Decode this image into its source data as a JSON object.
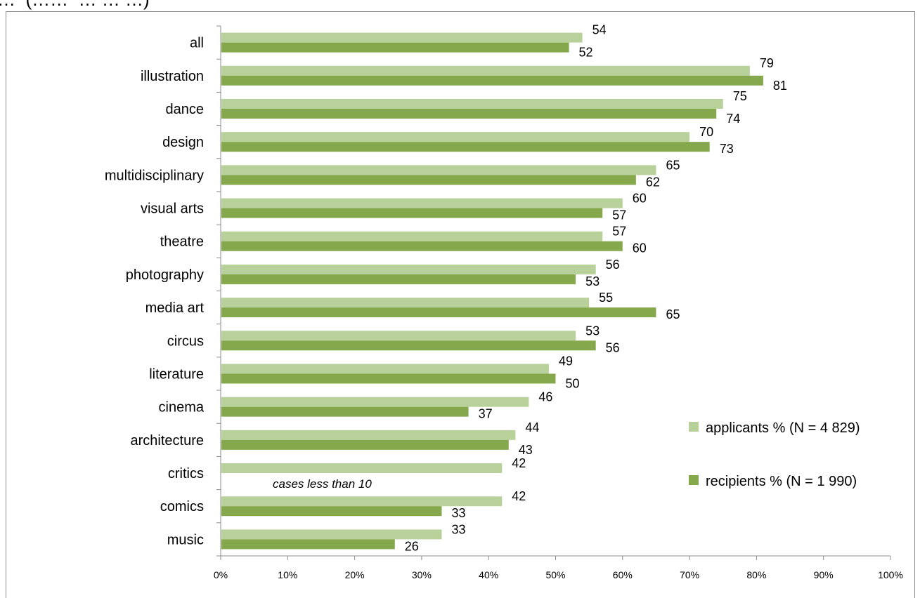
{
  "header": {
    "cropped_text": "…  (……  … … …)"
  },
  "chart_data": {
    "type": "bar",
    "orientation": "horizontal",
    "categories": [
      "all",
      "illustration",
      "dance",
      "design",
      "multidisciplinary",
      "visual arts",
      "theatre",
      "photography",
      "media art",
      "circus",
      "literature",
      "cinema",
      "architecture",
      "critics",
      "comics",
      "music"
    ],
    "series": [
      {
        "name": "applicants % (N = 4 829)",
        "color": "#b8d19a",
        "values": [
          54,
          79,
          75,
          70,
          65,
          60,
          57,
          56,
          55,
          53,
          49,
          46,
          44,
          42,
          42,
          33
        ]
      },
      {
        "name": "recipients % (N = 1 990)",
        "color": "#86a84c",
        "values": [
          52,
          81,
          74,
          73,
          62,
          57,
          60,
          53,
          65,
          56,
          50,
          37,
          43,
          null,
          33,
          26
        ]
      }
    ],
    "xlim": [
      0,
      100
    ],
    "x_ticks": [
      "0%",
      "10%",
      "20%",
      "30%",
      "40%",
      "50%",
      "60%",
      "70%",
      "80%",
      "90%",
      "100%"
    ],
    "grid": false,
    "legend_position": "right",
    "annotations": [
      {
        "category": "critics",
        "text": "cases less than 10"
      }
    ]
  }
}
